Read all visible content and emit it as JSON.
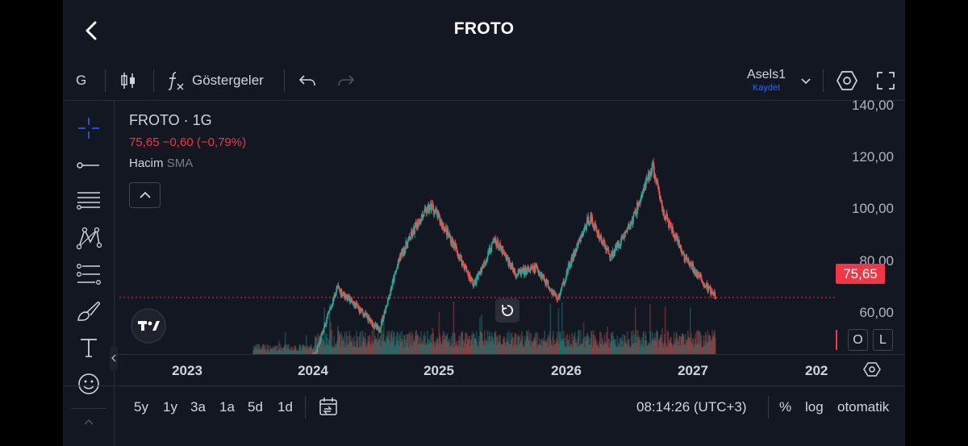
{
  "header": {
    "title": "FROTO"
  },
  "toolbar": {
    "interval": "G",
    "indicators_label": "Göstergeler",
    "layout_name": "Asels1",
    "layout_save": "Kaydet"
  },
  "legend": {
    "symbol": "FROTO · 1G",
    "price_line": "75,65  −0,60 (−0,79%)",
    "volume_label": "Hacim",
    "volume_sma": "SMA"
  },
  "price_axis": {
    "labels": [
      "140,00",
      "120,00",
      "100,00",
      "80,00",
      "60,00"
    ],
    "last_price": "75,65"
  },
  "scale_buttons": {
    "o": "O",
    "l": "L"
  },
  "time_axis": {
    "labels": [
      "2023",
      "2024",
      "2025",
      "2026",
      "2027",
      "202"
    ]
  },
  "bottombar": {
    "ranges": [
      "5y",
      "1y",
      "3a",
      "1a",
      "5d",
      "1d"
    ],
    "time": "08:14:26 (UTC+3)",
    "percent": "%",
    "log": "log",
    "auto": "otomatik"
  },
  "colors": {
    "background": "#131722",
    "up": "#26a69a",
    "down": "#ef5350",
    "last_price": "#f23645"
  },
  "chart_data": {
    "type": "candlestick",
    "symbol": "FROTO",
    "interval": "1G",
    "x": [
      "2023-06",
      "2023-08",
      "2023-10",
      "2023-12",
      "2024-02",
      "2024-04",
      "2024-05",
      "2024-07",
      "2024-09",
      "2024-11",
      "2025-01",
      "2025-03",
      "2025-05",
      "2025-06",
      "2025-08",
      "2025-10",
      "2025-12",
      "2026-02",
      "2026-03",
      "2026-05",
      "2026-07",
      "2026-08"
    ],
    "close": [
      56,
      79,
      72,
      64,
      90,
      104,
      108,
      95,
      80,
      96,
      84,
      86,
      75,
      86,
      104,
      90,
      102,
      122,
      106,
      90,
      80,
      75.65
    ],
    "ylim": [
      50,
      145
    ],
    "last_price": 75.65,
    "volume_shown": true
  }
}
